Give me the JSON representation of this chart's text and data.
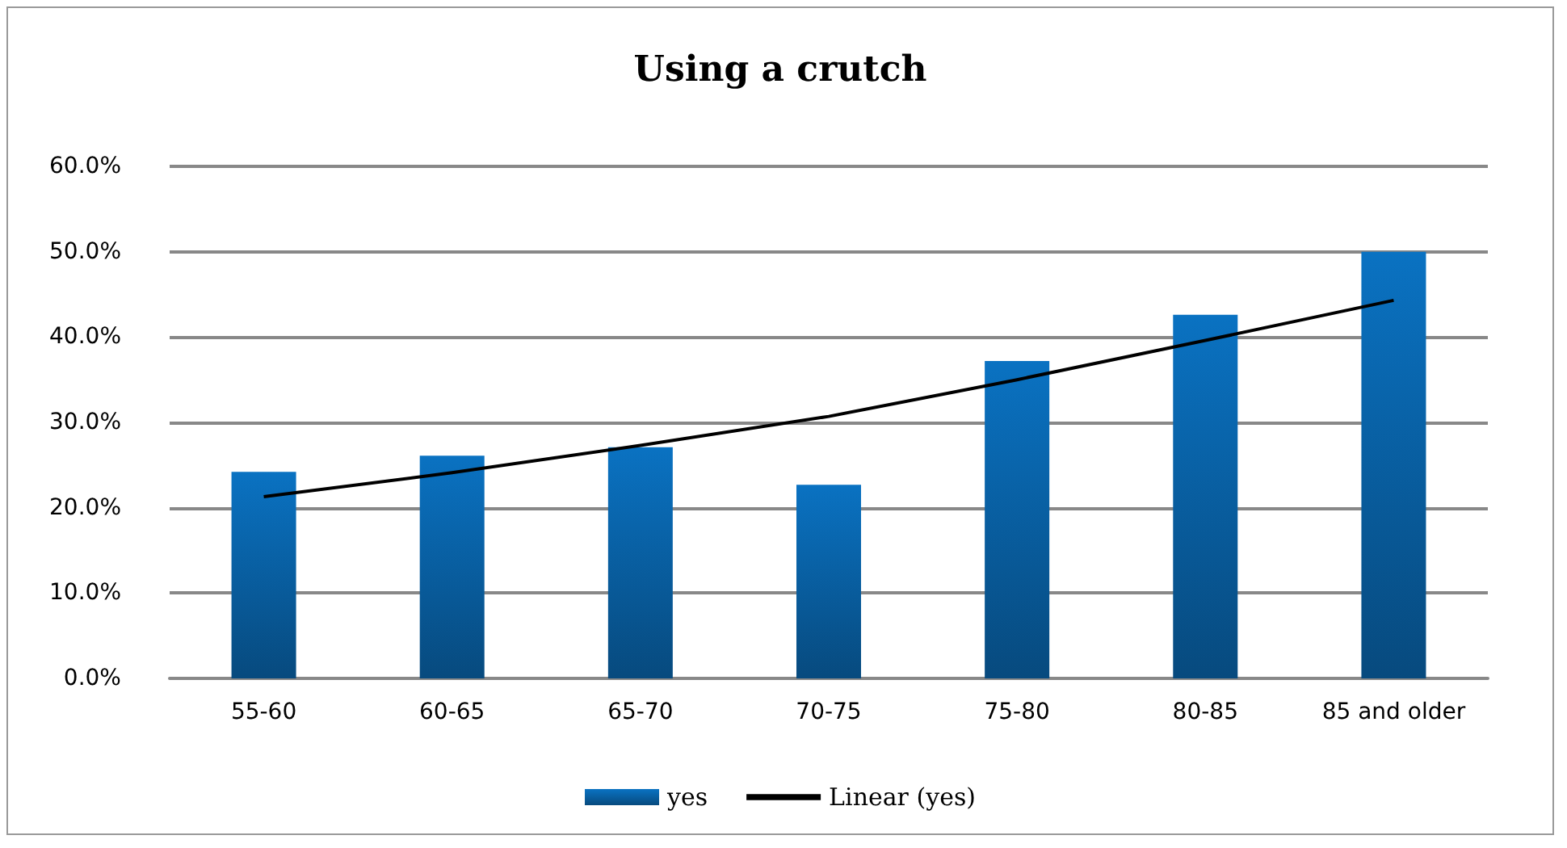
{
  "chart_data": {
    "type": "bar",
    "title": "Using a crutch",
    "categories": [
      "55-60",
      "60-65",
      "65-70",
      "70-75",
      "75-80",
      "80-85",
      "85 and older"
    ],
    "series": [
      {
        "name": "yes",
        "color": "#0a72c2",
        "values": [
          24.2,
          26.1,
          27.1,
          22.7,
          37.2,
          42.6,
          50.0
        ]
      },
      {
        "name": "Linear (yes)",
        "type": "line",
        "color": "#000000",
        "marker": "none",
        "line_style": "solid",
        "values": [
          21.3,
          24.1,
          27.3,
          30.7,
          35.0,
          39.6,
          44.3
        ]
      }
    ],
    "ylim": [
      0,
      60
    ],
    "yticks": [
      {
        "value": 0,
        "label": "0.0%"
      },
      {
        "value": 10,
        "label": "10.0%"
      },
      {
        "value": 20,
        "label": "20.0%"
      },
      {
        "value": 30,
        "label": "30.0%"
      },
      {
        "value": 40,
        "label": "40.0%"
      },
      {
        "value": 50,
        "label": "50.0%"
      },
      {
        "value": 60,
        "label": "60.0%"
      }
    ],
    "grid": "y",
    "legend": "bottom"
  }
}
